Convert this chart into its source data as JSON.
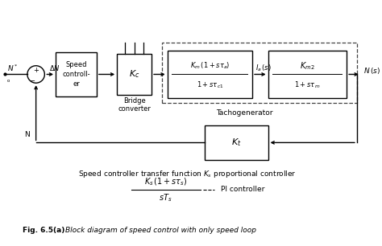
{
  "bg_color": "#ffffff",
  "line_color": "#000000",
  "fig_label": "Fig. 6.5(a)",
  "fig_caption": "Block diagram of speed control with only speed loop",
  "ann_text": "Speed controller transfer function K",
  "ann_sub": "s",
  "ann_suffix": " proportional controller",
  "pi_text": "PI controller"
}
